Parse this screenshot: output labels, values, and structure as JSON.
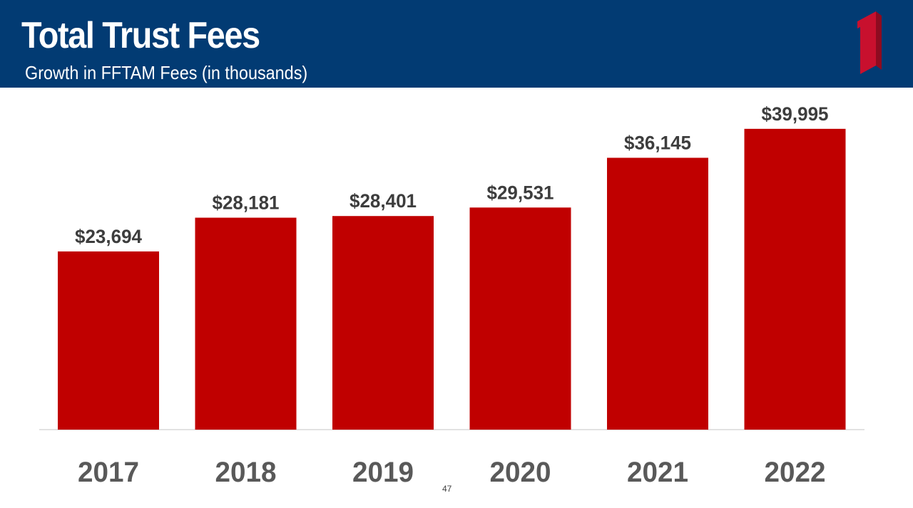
{
  "slide": {
    "title": "Total Trust Fees",
    "subtitle": "Growth in FFTAM Fees (in thousands)",
    "page_number": "47"
  },
  "colors": {
    "header_bg": "#023b73",
    "bar": "#c00000",
    "logo": "#c8102e"
  },
  "chart_data": {
    "type": "bar",
    "title": "",
    "xlabel": "",
    "ylabel": "",
    "categories": [
      "2017",
      "2018",
      "2019",
      "2020",
      "2021",
      "2022"
    ],
    "values": [
      23694,
      28181,
      28401,
      29531,
      36145,
      39995
    ],
    "value_labels": [
      "$23,694",
      "$28,181",
      "$28,401",
      "$29,531",
      "$36,145",
      "$39,995"
    ],
    "ylim": [
      0,
      45000
    ],
    "grid": false,
    "legend": "none"
  }
}
